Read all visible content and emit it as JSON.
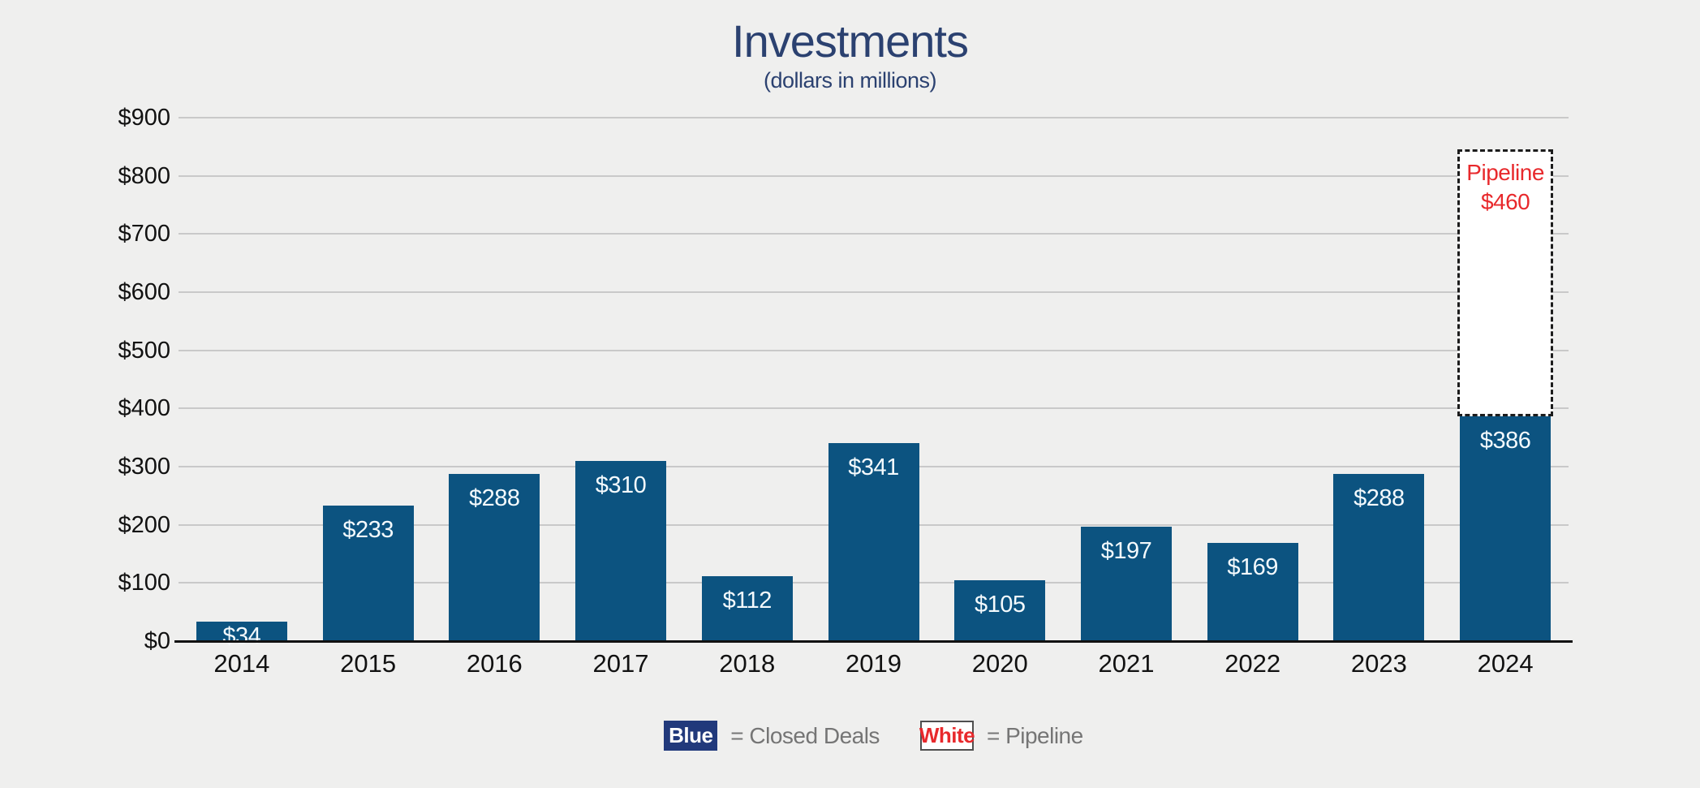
{
  "header": {
    "title": "Investments",
    "subtitle": "(dollars in millions)"
  },
  "colors": {
    "background": "#EFEFEE",
    "bar_blue": "#0C5380",
    "legend_navy": "#21397B",
    "accent_red": "#E8292C",
    "title_navy": "#2B4170",
    "gridline_gray": "#C9C9C9",
    "axis_black": "#111111",
    "legend_text_gray": "#757575"
  },
  "chart_data": {
    "type": "bar",
    "stacked": true,
    "title": "Investments",
    "subtitle": "(dollars in millions)",
    "categories": [
      "2014",
      "2015",
      "2016",
      "2017",
      "2018",
      "2019",
      "2020",
      "2021",
      "2022",
      "2023",
      "2024"
    ],
    "series": [
      {
        "name": "Closed Deals",
        "swatch": "Blue",
        "values": [
          34,
          233,
          288,
          310,
          112,
          341,
          105,
          197,
          169,
          288,
          386
        ]
      },
      {
        "name": "Pipeline",
        "swatch": "White",
        "values": [
          0,
          0,
          0,
          0,
          0,
          0,
          0,
          0,
          0,
          0,
          460
        ]
      }
    ],
    "bar_value_labels": [
      "$34",
      "$233",
      "$288",
      "$310",
      "$112",
      "$341",
      "$105",
      "$197",
      "$169",
      "$288",
      "$386"
    ],
    "pipeline_annotation": {
      "line1": "Pipeline",
      "line2": "$460"
    },
    "y_axis": {
      "min": 0,
      "max": 900,
      "step": 100,
      "tick_labels": [
        "$0",
        "$100",
        "$200",
        "$300",
        "$400",
        "$500",
        "$600",
        "$700",
        "$800",
        "$900"
      ]
    },
    "grid": true,
    "legend_position": "bottom"
  },
  "legend": {
    "items": [
      {
        "swatch_label": "Blue",
        "swatch_style": "blue",
        "text": "= Closed Deals"
      },
      {
        "swatch_label": "White",
        "swatch_style": "white",
        "text": "= Pipeline"
      }
    ]
  }
}
